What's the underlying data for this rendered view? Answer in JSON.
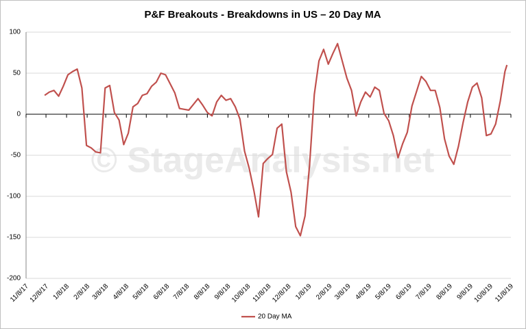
{
  "chart_data": {
    "type": "line",
    "title": "P&F Breakouts - Breakdowns in US – 20 Day MA",
    "watermark": "© StageAnalysis.net",
    "x": [
      "12/6/17",
      "12/13/17",
      "12/20/17",
      "12/27/17",
      "1/3/18",
      "1/10/18",
      "1/17/18",
      "1/24/18",
      "1/31/18",
      "2/7/18",
      "2/14/18",
      "2/21/18",
      "2/28/18",
      "3/7/18",
      "3/14/18",
      "3/21/18",
      "3/28/18",
      "4/4/18",
      "4/11/18",
      "4/18/18",
      "4/25/18",
      "5/2/18",
      "5/9/18",
      "5/16/18",
      "5/23/18",
      "5/30/18",
      "6/6/18",
      "6/13/18",
      "6/20/18",
      "6/27/18",
      "7/4/18",
      "7/11/18",
      "7/18/18",
      "7/25/18",
      "8/1/18",
      "8/8/18",
      "8/15/18",
      "8/22/18",
      "8/29/18",
      "9/5/18",
      "9/12/18",
      "9/19/18",
      "9/26/18",
      "10/3/18",
      "10/10/18",
      "10/17/18",
      "10/24/18",
      "10/31/18",
      "11/7/18",
      "11/14/18",
      "11/21/18",
      "11/28/18",
      "12/5/18",
      "12/12/18",
      "12/19/18",
      "12/26/18",
      "1/2/19",
      "1/9/19",
      "1/16/19",
      "1/23/19",
      "1/30/19",
      "2/6/19",
      "2/13/19",
      "2/20/19",
      "2/27/19",
      "3/6/19",
      "3/13/19",
      "3/20/19",
      "3/27/19",
      "4/3/19",
      "4/10/19",
      "4/17/19",
      "4/24/19",
      "5/1/19",
      "5/8/19",
      "5/15/19",
      "5/22/19",
      "5/29/19",
      "6/5/19",
      "6/12/19",
      "6/19/19",
      "6/26/19",
      "7/3/19",
      "7/10/19",
      "7/17/19",
      "7/24/19",
      "7/31/19",
      "8/7/19",
      "8/14/19",
      "8/21/19",
      "8/28/19",
      "9/4/19",
      "9/11/19",
      "9/18/19",
      "9/25/19",
      "10/2/19",
      "10/9/19",
      "10/16/19",
      "10/23/19",
      "10/30/19",
      "11/2/19"
    ],
    "series": [
      {
        "name": "20 Day MA",
        "color": "#c0504d",
        "values": [
          23,
          27,
          29,
          22,
          34,
          48,
          52,
          55,
          32,
          -38,
          -41,
          -46,
          -47,
          32,
          35,
          2,
          -7,
          -37,
          -23,
          9,
          13,
          23,
          25,
          34,
          39,
          50,
          48,
          37,
          26,
          7,
          6,
          5,
          12,
          19,
          11,
          2,
          -2,
          15,
          23,
          17,
          19,
          9,
          -6,
          -45,
          -66,
          -93,
          -125,
          -60,
          -54,
          -49,
          -17,
          -12,
          -70,
          -95,
          -137,
          -148,
          -124,
          -61,
          24,
          65,
          79,
          61,
          74,
          86,
          65,
          44,
          29,
          -2,
          15,
          27,
          21,
          33,
          29,
          1,
          -8,
          -26,
          -53,
          -36,
          -22,
          10,
          28,
          46,
          40,
          29,
          29,
          8,
          -30,
          -51,
          -61,
          -39,
          -10,
          15,
          33,
          38,
          20,
          -26,
          -24,
          -12,
          16,
          52,
          60
        ]
      }
    ],
    "xlim": [
      "11/8/17",
      "11/8/19"
    ],
    "xticks": [
      "11/8/17",
      "12/8/17",
      "1/8/18",
      "2/8/18",
      "3/8/18",
      "4/8/18",
      "5/8/18",
      "6/8/18",
      "7/8/18",
      "8/8/18",
      "9/8/18",
      "10/8/18",
      "11/8/18",
      "12/8/18",
      "1/8/19",
      "2/8/19",
      "3/8/19",
      "4/8/19",
      "5/8/19",
      "6/8/19",
      "7/8/19",
      "8/8/19",
      "9/8/19",
      "10/8/19",
      "11/8/19"
    ],
    "ylim": [
      -200,
      100
    ],
    "yticks": [
      -200,
      -150,
      -100,
      -50,
      0,
      50,
      100
    ],
    "grid": true,
    "legend": "bottom"
  }
}
